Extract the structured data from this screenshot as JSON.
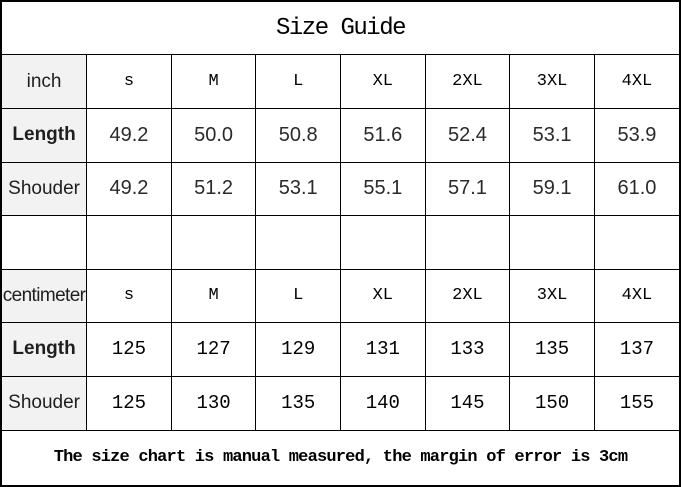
{
  "title": "Size Guide",
  "inch": {
    "unit": "inch",
    "sizes": [
      "s",
      "M",
      "L",
      "XL",
      "2XL",
      "3XL",
      "4XL"
    ],
    "length_label": "Length",
    "length": [
      "49.2",
      "50.0",
      "50.8",
      "51.6",
      "52.4",
      "53.1",
      "53.9"
    ],
    "shoulder_label": "Shouder",
    "shoulder": [
      "49.2",
      "51.2",
      "53.1",
      "55.1",
      "57.1",
      "59.1",
      "61.0"
    ]
  },
  "centimeter": {
    "unit": "centimeter",
    "sizes": [
      "s",
      "M",
      "L",
      "XL",
      "2XL",
      "3XL",
      "4XL"
    ],
    "length_label": "Length",
    "length": [
      "125",
      "127",
      "129",
      "131",
      "133",
      "135",
      "137"
    ],
    "shoulder_label": "Shouder",
    "shoulder": [
      "125",
      "130",
      "135",
      "140",
      "145",
      "150",
      "155"
    ]
  },
  "footer": "The size chart is manual measured, the margin of error is 3cm",
  "colors": {
    "border": "#000000",
    "label_background": "#f2f2f2",
    "text": "#000000"
  }
}
